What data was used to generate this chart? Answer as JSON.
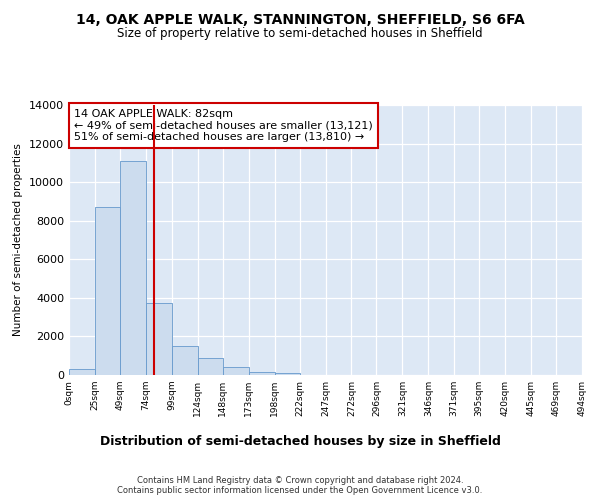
{
  "title": "14, OAK APPLE WALK, STANNINGTON, SHEFFIELD, S6 6FA",
  "subtitle": "Size of property relative to semi-detached houses in Sheffield",
  "xlabel": "Distribution of semi-detached houses by size in Sheffield",
  "ylabel": "Number of semi-detached properties",
  "footer_line1": "Contains HM Land Registry data © Crown copyright and database right 2024.",
  "footer_line2": "Contains public sector information licensed under the Open Government Licence v3.0.",
  "annotation_line1": "14 OAK APPLE WALK: 82sqm",
  "annotation_line2": "← 49% of semi-detached houses are smaller (13,121)",
  "annotation_line3": "51% of semi-detached houses are larger (13,810) →",
  "property_size": 82,
  "bin_edges": [
    0,
    25,
    49,
    74,
    99,
    124,
    148,
    173,
    198,
    222,
    247,
    272,
    296,
    321,
    346,
    371,
    395,
    420,
    445,
    469,
    494
  ],
  "bar_heights": [
    300,
    8700,
    11100,
    3750,
    1500,
    900,
    400,
    150,
    100,
    0,
    0,
    0,
    0,
    0,
    0,
    0,
    0,
    0,
    0,
    0
  ],
  "bar_color": "#ccdcee",
  "bar_edge_color": "#6699cc",
  "red_line_color": "#cc0000",
  "background_color": "#dde8f5",
  "grid_color": "#ffffff",
  "annotation_box_color": "#ffffff",
  "annotation_box_edge": "#cc0000",
  "fig_bg_color": "#ffffff",
  "ylim": [
    0,
    14000
  ],
  "yticks": [
    0,
    2000,
    4000,
    6000,
    8000,
    10000,
    12000,
    14000
  ]
}
